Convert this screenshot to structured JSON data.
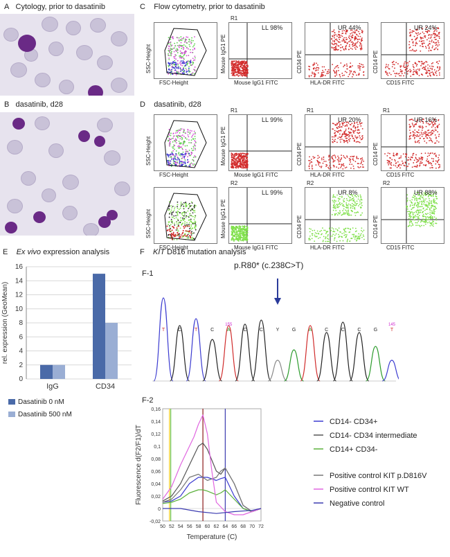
{
  "panels": {
    "A": {
      "letter": "A",
      "title": "Cytology, prior to dasatinib"
    },
    "B": {
      "letter": "B",
      "title": "dasatinib, d28"
    },
    "C": {
      "letter": "C",
      "title": "Flow cytometry, prior to dasatinib"
    },
    "D": {
      "letter": "D",
      "title": "dasatinib, d28"
    },
    "E": {
      "letter": "E",
      "title_italic": "Ex vivo",
      "title_rest": " expression analysis"
    },
    "F": {
      "letter": "F",
      "title_italic": "KIT",
      "title_rest": " D816 mutation analysis"
    },
    "F1": {
      "label": "F-1",
      "mutation": "p.R80* (c.238C>T)"
    },
    "F2": {
      "label": "F-2"
    }
  },
  "flow": {
    "rowC": [
      {
        "gate": "",
        "quad": "",
        "x": "FSC-Height",
        "y": "SSC-Height"
      },
      {
        "gate": "R1",
        "quad": "LL 98%",
        "x": "Mouse IgG1 FITC",
        "y": "Mouse IgG1 PE"
      },
      {
        "gate": "",
        "quad": "UR 44%",
        "x": "HLA-DR FITC",
        "y": "CD34 PE"
      },
      {
        "gate": "",
        "quad": "UR 24%",
        "x": "CD15 FITC",
        "y": "CD14 PE"
      }
    ],
    "rowD1": [
      {
        "gate": "",
        "quad": "",
        "x": "FSC-Height",
        "y": "SSC-Height"
      },
      {
        "gate": "R1",
        "quad": "LL 99%",
        "x": "Mouse IgG1 FITC",
        "y": "Mouse IgG1 PE"
      },
      {
        "gate": "R1",
        "quad": "UR 20%",
        "x": "HLA-DR FITC",
        "y": "CD34 PE"
      },
      {
        "gate": "R1",
        "quad": "UR 16%",
        "x": "CD15 FITC",
        "y": "CD14 PE"
      }
    ],
    "rowD2": [
      {
        "gate": "",
        "quad": "",
        "x": "FSC-Height",
        "y": "SSC-Height"
      },
      {
        "gate": "R2",
        "quad": "LL 99%",
        "x": "Mouse IgG1 FITC",
        "y": "Mouse IgG1 PE"
      },
      {
        "gate": "R2",
        "quad": "UR 8%",
        "x": "HLA-DR FITC",
        "y": "CD34 PE"
      },
      {
        "gate": "R2",
        "quad": "UR 88%",
        "x": "CD15 FITC",
        "y": "CD14 PE"
      }
    ]
  },
  "colors": {
    "red_events": "#d22a2a",
    "green_events": "#7fe04a",
    "bar_dark": "#4a6aa8",
    "bar_light": "#9aaed4"
  },
  "chart_data": [
    {
      "type": "bar",
      "categories": [
        "IgG",
        "CD34"
      ],
      "series": [
        {
          "name": "Dasatinib 0 nM",
          "values": [
            2,
            15
          ]
        },
        {
          "name": "Dasatinib 500 nM",
          "values": [
            2,
            8
          ]
        }
      ],
      "ylabel": "rel. expression (GeoMean)",
      "ylim": [
        0,
        16
      ],
      "yticks": [
        0,
        2,
        4,
        6,
        8,
        10,
        12,
        14,
        16
      ],
      "grid": true,
      "legend": "bottom"
    },
    {
      "type": "line",
      "xlabel": "Temperature (C)",
      "ylabel": "Fluorescence d(F2/F1)/dT",
      "xlim": [
        50,
        72
      ],
      "ylim": [
        -0.02,
        0.16
      ],
      "xticks": [
        50,
        52,
        54,
        56,
        58,
        60,
        62,
        64,
        66,
        68,
        70,
        72
      ],
      "yticks": [
        "0,16",
        "0,14",
        "0,12",
        "0,1",
        "0,08",
        "0,06",
        "0,04",
        "0,02",
        "0",
        "-0,02"
      ],
      "vlines": [
        {
          "x": 51.5,
          "color": "#f2d020"
        },
        {
          "x": 51.8,
          "color": "#6ac24a"
        },
        {
          "x": 59,
          "color": "#8b1a1a"
        },
        {
          "x": 64,
          "color": "#3a3ab0"
        }
      ],
      "series": [
        {
          "name": "CD14- CD34+",
          "color": "#3a3ad0",
          "x": [
            50,
            52,
            54,
            56,
            58,
            59,
            60,
            62,
            63,
            64,
            66,
            68,
            70,
            72
          ],
          "y": [
            0.01,
            0.012,
            0.02,
            0.04,
            0.05,
            0.05,
            0.05,
            0.045,
            0.048,
            0.05,
            0.02,
            0,
            -0.005,
            0
          ]
        },
        {
          "name": "CD14- CD34 intermediate",
          "color": "#555555",
          "x": [
            50,
            52,
            54,
            56,
            58,
            59,
            60,
            62,
            63,
            64,
            66,
            68,
            70,
            72
          ],
          "y": [
            0.012,
            0.02,
            0.04,
            0.07,
            0.1,
            0.105,
            0.095,
            0.06,
            0.055,
            0.065,
            0.04,
            0.005,
            -0.005,
            0
          ]
        },
        {
          "name": "CD14+ CD34-",
          "color": "#5ab03a",
          "x": [
            50,
            52,
            54,
            56,
            58,
            59,
            60,
            62,
            63,
            64,
            66,
            68,
            70,
            72
          ],
          "y": [
            0.008,
            0.01,
            0.015,
            0.025,
            0.03,
            0.03,
            0.028,
            0.022,
            0.025,
            0.03,
            0.015,
            0,
            -0.005,
            0
          ]
        },
        {
          "name": "Positive control KIT p.D816V",
          "color": "#777777",
          "x": [
            50,
            52,
            54,
            56,
            58,
            59,
            60,
            62,
            63,
            64,
            66,
            68,
            70,
            72
          ],
          "y": [
            0.01,
            0.015,
            0.03,
            0.05,
            0.055,
            0.05,
            0.045,
            0.05,
            0.06,
            0.065,
            0.04,
            0.005,
            -0.005,
            0
          ]
        },
        {
          "name": "Positive control KIT WT",
          "color": "#e066e0",
          "x": [
            50,
            52,
            54,
            56,
            57,
            58,
            59,
            60,
            61,
            62,
            64,
            66,
            68,
            70,
            72
          ],
          "y": [
            0.015,
            0.035,
            0.07,
            0.1,
            0.115,
            0.135,
            0.15,
            0.12,
            0.06,
            0.01,
            -0.005,
            -0.01,
            -0.01,
            -0.005,
            0
          ]
        },
        {
          "name": "Negative control",
          "color": "#3a3ab0",
          "x": [
            50,
            54,
            58,
            62,
            66,
            70,
            72
          ],
          "y": [
            0,
            0,
            -0.005,
            -0.008,
            -0.005,
            -0.003,
            0
          ]
        }
      ],
      "legend": "right"
    }
  ],
  "sequence": {
    "bases": [
      "T",
      "C",
      "T",
      "C",
      "A",
      "C",
      "C",
      "Y",
      "G",
      "A",
      "C",
      "C",
      "C",
      "G",
      "T"
    ],
    "positions": [
      {
        "index": 4,
        "text": "155"
      },
      {
        "index": 14,
        "text": "145"
      }
    ]
  }
}
